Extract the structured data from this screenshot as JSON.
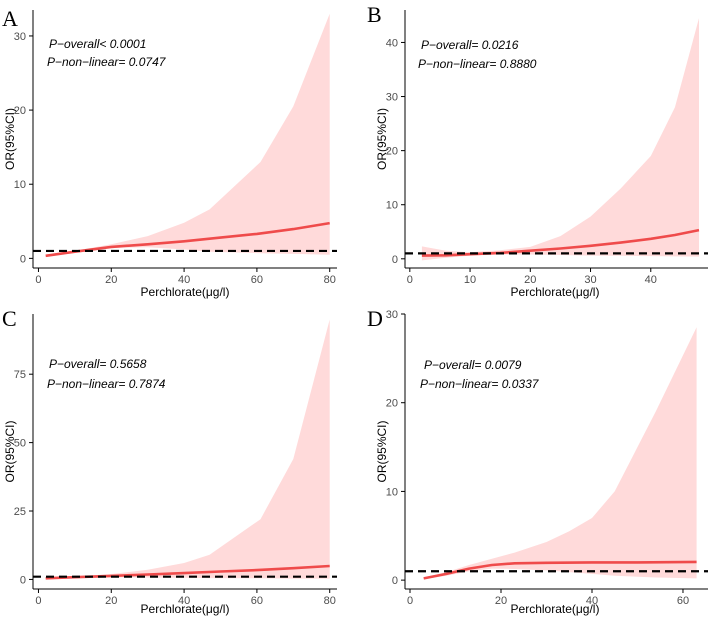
{
  "colors": {
    "line": "#ef4b4b",
    "band": "#ffdada",
    "reference": "#000000",
    "axis": "#000000"
  },
  "chart_data": [
    {
      "panel": "A",
      "type": "line",
      "title": "",
      "xlabel": "Perchlorate(μg/l)",
      "ylabel": "OR(95%CI)",
      "xlim": [
        -1.5,
        82
      ],
      "ylim": [
        -1.3,
        33.5
      ],
      "xticks": [
        0,
        20,
        40,
        60,
        80
      ],
      "yticks": [
        0,
        10,
        20,
        30
      ],
      "reference_y": 1,
      "annotations": [
        "P−overall< 0.0001",
        "P−non−linear= 0.0747"
      ],
      "series": [
        {
          "name": "OR",
          "x": [
            2,
            10,
            20,
            30,
            40,
            50,
            60,
            70,
            80
          ],
          "y": [
            0.35,
            0.9,
            1.55,
            1.9,
            2.3,
            2.8,
            3.3,
            3.95,
            4.75
          ]
        },
        {
          "name": "95% CI",
          "x": [
            2,
            10,
            20,
            30,
            40,
            47,
            61,
            70,
            80
          ],
          "lower": [
            0.25,
            0.85,
            1.4,
            1.5,
            1.2,
            0.9,
            0.7,
            0.6,
            0.5
          ],
          "upper": [
            0.45,
            1.0,
            1.9,
            3.0,
            4.8,
            6.6,
            13.0,
            20.5,
            33.0
          ]
        }
      ]
    },
    {
      "panel": "B",
      "type": "line",
      "title": "",
      "xlabel": "Perchlorate(μg/l)",
      "ylabel": "OR(95%CI)",
      "xlim": [
        -0.8,
        49.5
      ],
      "ylim": [
        -1.7,
        46
      ],
      "xticks": [
        0,
        10,
        20,
        30,
        40
      ],
      "yticks": [
        0,
        10,
        20,
        30,
        40
      ],
      "reference_y": 1,
      "annotations": [
        "P−overall= 0.0216",
        "P−non−linear= 0.8880"
      ],
      "series": [
        {
          "name": "OR",
          "x": [
            2,
            6,
            10,
            15,
            20,
            25,
            30,
            35,
            40,
            44,
            48
          ],
          "y": [
            0.6,
            0.65,
            0.85,
            1.1,
            1.5,
            1.9,
            2.4,
            3.0,
            3.7,
            4.4,
            5.3
          ]
        },
        {
          "name": "95% CI",
          "x": [
            2,
            6,
            10,
            15,
            20,
            25,
            30,
            35,
            40,
            44,
            48
          ],
          "lower": [
            -0.3,
            0.2,
            0.6,
            0.8,
            0.8,
            0.7,
            0.6,
            0.55,
            0.5,
            0.45,
            0.4
          ],
          "upper": [
            2.3,
            1.5,
            1.2,
            1.6,
            2.2,
            4.2,
            7.8,
            13.0,
            19.0,
            28.0,
            44.5
          ]
        }
      ]
    },
    {
      "panel": "C",
      "type": "line",
      "title": "",
      "xlabel": "Perchlorate(μg/l)",
      "ylabel": "OR(95%CI)",
      "xlim": [
        -1.5,
        82
      ],
      "ylim": [
        -3.5,
        97
      ],
      "xticks": [
        0,
        20,
        40,
        60,
        80
      ],
      "yticks": [
        0,
        25,
        50,
        75
      ],
      "reference_y": 1,
      "annotations": [
        "P−overall= 0.5658",
        "P−non−linear= 0.7874"
      ],
      "series": [
        {
          "name": "OR",
          "x": [
            2,
            10,
            20,
            30,
            40,
            50,
            60,
            70,
            80
          ],
          "y": [
            0.4,
            0.8,
            1.3,
            1.8,
            2.3,
            2.9,
            3.4,
            4.1,
            4.9
          ]
        },
        {
          "name": "95% CI",
          "x": [
            2,
            10,
            20,
            30,
            40,
            47,
            61,
            70,
            80
          ],
          "lower": [
            0.3,
            0.6,
            0.8,
            0.7,
            0.6,
            0.5,
            0.4,
            0.3,
            0.3
          ],
          "upper": [
            0.5,
            1.0,
            2.0,
            3.5,
            6.0,
            9.0,
            22.0,
            44.0,
            95.0
          ]
        }
      ]
    },
    {
      "panel": "D",
      "type": "line",
      "title": "",
      "xlabel": "Perchlorate(μg/l)",
      "ylabel": "OR(95%CI)",
      "xlim": [
        -1.1,
        65.5
      ],
      "ylim": [
        -1,
        30
      ],
      "xticks": [
        0,
        20,
        40,
        60
      ],
      "yticks": [
        0,
        10,
        20,
        30
      ],
      "reference_y": 1,
      "annotations": [
        "P−overall= 0.0079",
        "P−non−linear= 0.0337"
      ],
      "series": [
        {
          "name": "OR",
          "x": [
            3,
            8,
            13,
            18,
            23,
            30,
            40,
            50,
            63
          ],
          "y": [
            0.2,
            0.7,
            1.3,
            1.7,
            1.9,
            1.95,
            2.0,
            2.0,
            2.05
          ]
        },
        {
          "name": "95% CI",
          "x": [
            3,
            8,
            13,
            18,
            23,
            30,
            35,
            40,
            45,
            54,
            63
          ],
          "lower": [
            0.1,
            0.5,
            1.0,
            1.3,
            1.25,
            1.1,
            0.9,
            0.7,
            0.5,
            0.3,
            0.2
          ],
          "upper": [
            0.3,
            0.9,
            1.7,
            2.4,
            3.1,
            4.3,
            5.5,
            7.0,
            10.0,
            19.0,
            28.5
          ]
        }
      ]
    }
  ]
}
